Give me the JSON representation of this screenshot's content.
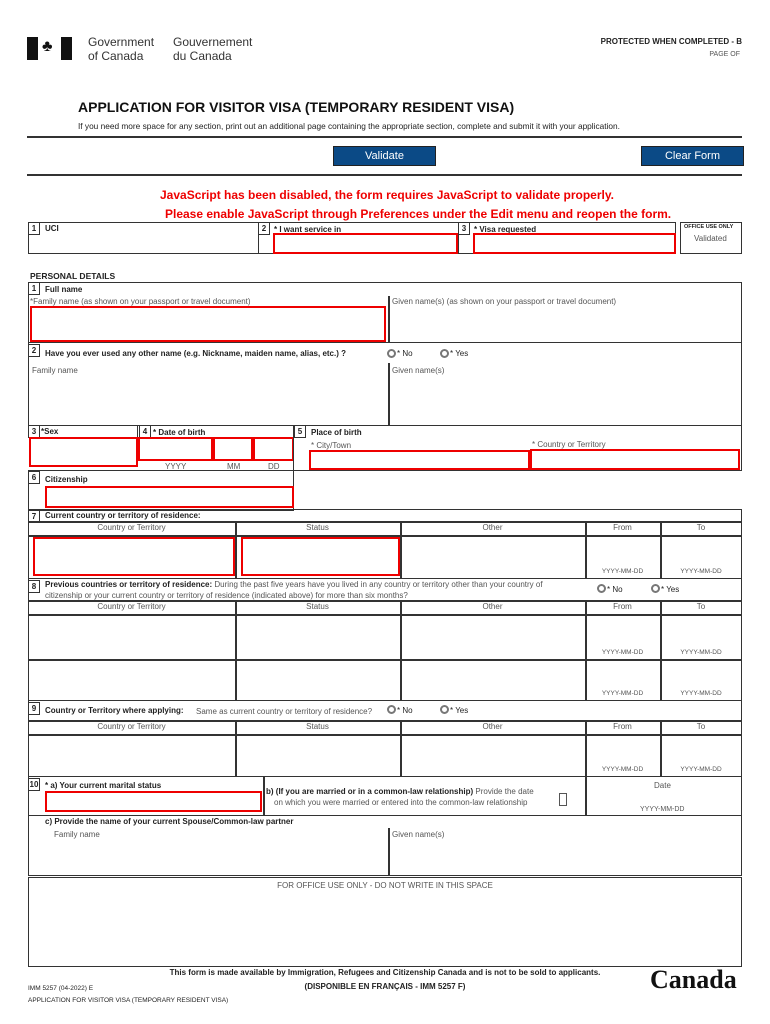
{
  "header": {
    "gov_en_1": "Government",
    "gov_en_2": "of Canada",
    "gov_fr_1": "Gouvernement",
    "gov_fr_2": "du Canada",
    "protected": "PROTECTED WHEN COMPLETED - B",
    "page_of": "PAGE OF"
  },
  "title": "APPLICATION FOR VISITOR VISA (TEMPORARY RESIDENT VISA)",
  "subtitle": "If you need more space for any section, print out an additional page containing the appropriate section, complete and submit it with your application.",
  "buttons": {
    "validate": "Validate",
    "clear": "Clear Form"
  },
  "warnings": [
    "JavaScript has been disabled, the form requires JavaScript to validate properly.",
    "Please enable JavaScript through Preferences under the Edit menu and reopen the form."
  ],
  "top": {
    "uci": "UCI",
    "service": "* I want service in",
    "visa": "* Visa requested",
    "office": "OFFICE USE ONLY",
    "validated": "Validated"
  },
  "personal": {
    "heading": "PERSONAL DETAILS",
    "full_name": "Full name",
    "family_passport": "*Family name  (as shown on your passport or travel document)",
    "given_passport": "Given name(s)  (as shown on your passport or travel document)",
    "other_name_q": "Have you ever used any other name (e.g. Nickname, maiden name, alias, etc.) ?",
    "no": "* No",
    "yes": "* Yes",
    "family": "Family name",
    "given": "Given name(s)",
    "sex": "*Sex",
    "dob": "* Date of birth",
    "yyyy": "YYYY",
    "mm": "MM",
    "dd": "DD",
    "pob": "Place of birth",
    "city": "* City/Town",
    "country": "* Country or Territory",
    "citizenship": "Citizenship"
  },
  "residence": {
    "current": "Current country or territory of residence:",
    "cols": [
      "Country or Territory",
      "Status",
      "Other",
      "From",
      "To"
    ],
    "date": "YYYY-MM-DD",
    "prev_bold": "Previous countries or territory of residence:",
    "prev_text": " During the past five years have you lived in any country or territory other than your country of",
    "prev_text2": "citizenship or your current country or territory of residence (indicated above) for more than six months?",
    "applying": "Country or Territory where applying:",
    "same_q": "Same as current country or territory of residence?"
  },
  "marital": {
    "a": "* a) Your current marital status",
    "b_bold": "b) (If you are married or in a common-law relationship)",
    "b_text": " Provide the date",
    "b_text2": "on which you were married or entered into the common-law relationship",
    "date": "Date",
    "date_fmt": "YYYY-MM-DD",
    "c": "c) Provide the name of your current Spouse/Common-law partner"
  },
  "office": "FOR OFFICE USE ONLY - DO NOT WRITE IN THIS SPACE",
  "footer": {
    "notice": "This form is made available by Immigration, Refugees and Citizenship Canada and is not to be sold to applicants.",
    "french": "(DISPONIBLE EN FRANÇAIS - IMM 5257 F)",
    "code": "IMM 5257 (04-2022) E",
    "form_name": "APPLICATION FOR VISITOR VISA (TEMPORARY RESIDENT VISA)",
    "wordmark": "Canada"
  },
  "colors": {
    "button": "#0b4a86",
    "error": "#e00000"
  }
}
